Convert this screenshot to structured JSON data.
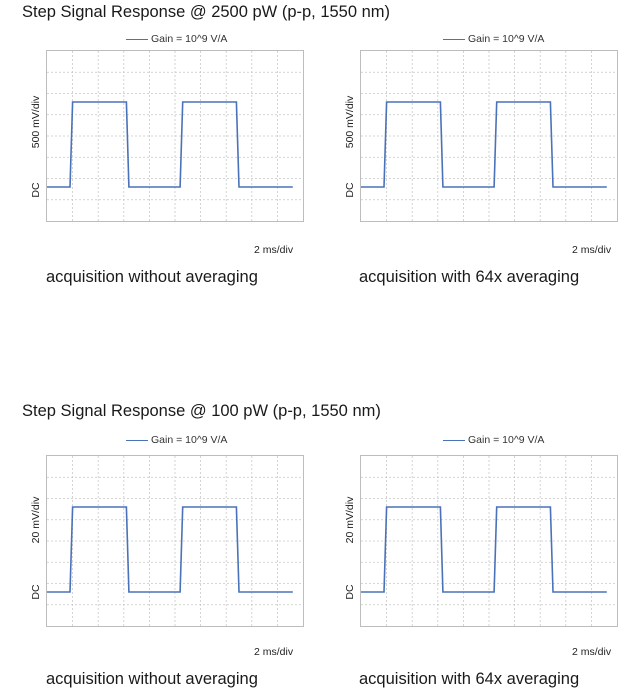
{
  "sections": [
    {
      "title": "Step Signal Response @ 2500 pW (p-p, 1550 nm)"
    },
    {
      "title": "Step Signal Response @ 100 pW (p-p, 1550 nm)"
    }
  ],
  "chart_data": [
    {
      "type": "line",
      "legend": "Gain = 10^9 V/A",
      "ylabel": "500 mV/div",
      "dc_label": "DC",
      "xscale_label": "2 ms/div",
      "caption": "acquisition without averaging",
      "color": "#4a72b8",
      "grid": true,
      "series": [
        {
          "name": "Gain = 10^9 V/A",
          "x": [
            0,
            0.9,
            1.0,
            3.1,
            3.2,
            5.2,
            5.3,
            7.4,
            7.5,
            9.6
          ],
          "y": [
            0,
            0,
            2.5,
            2.5,
            0,
            0,
            2.5,
            2.5,
            0,
            0
          ]
        }
      ]
    },
    {
      "type": "line",
      "legend": "Gain = 10^9 V/A",
      "ylabel": "500 mV/div",
      "dc_label": "DC",
      "xscale_label": "2 ms/div",
      "caption": "acquisition with 64x averaging",
      "color": "#4a72b8",
      "grid": true,
      "series": [
        {
          "name": "Gain = 10^9 V/A",
          "x": [
            0,
            0.9,
            1.0,
            3.1,
            3.2,
            5.2,
            5.3,
            7.4,
            7.5,
            9.6
          ],
          "y": [
            0,
            0,
            2.5,
            2.5,
            0,
            0,
            2.5,
            2.5,
            0,
            0
          ]
        }
      ]
    },
    {
      "type": "line",
      "legend": "Gain = 10^9 V/A",
      "ylabel": "20 mV/div",
      "dc_label": "DC",
      "xscale_label": "2 ms/div",
      "caption": "acquisition without averaging",
      "color": "#4a72b8",
      "grid": true,
      "series": [
        {
          "name": "Gain = 10^9 V/A",
          "x": [
            0,
            0.9,
            1.0,
            3.1,
            3.2,
            5.2,
            5.3,
            7.4,
            7.5,
            9.6
          ],
          "y": [
            0,
            0,
            2.5,
            2.5,
            0,
            0,
            2.5,
            2.5,
            0,
            0
          ]
        }
      ]
    },
    {
      "type": "line",
      "legend": "Gain = 10^9 V/A",
      "ylabel": "20 mV/div",
      "dc_label": "DC",
      "xscale_label": "2 ms/div",
      "caption": "acquisition with 64x averaging",
      "color": "#4a72b8",
      "grid": true,
      "series": [
        {
          "name": "Gain = 10^9 V/A",
          "x": [
            0,
            0.9,
            1.0,
            3.1,
            3.2,
            5.2,
            5.3,
            7.4,
            7.5,
            9.6
          ],
          "y": [
            0,
            0,
            2.5,
            2.5,
            0,
            0,
            2.5,
            2.5,
            0,
            0
          ]
        }
      ]
    }
  ]
}
